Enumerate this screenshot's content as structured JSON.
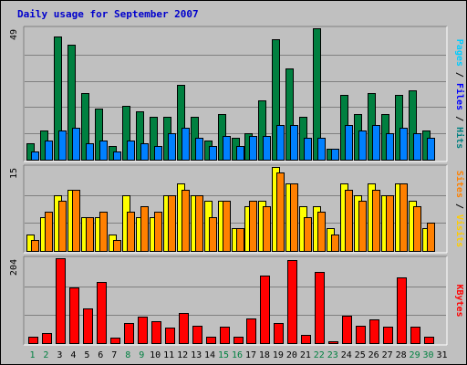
{
  "title": "Daily usage for September 2007",
  "chart_data": {
    "type": "bar",
    "title": "Daily usage for September 2007",
    "categories": [
      "1",
      "2",
      "3",
      "4",
      "5",
      "6",
      "7",
      "8",
      "9",
      "10",
      "11",
      "12",
      "13",
      "14",
      "15",
      "16",
      "17",
      "18",
      "19",
      "20",
      "21",
      "22",
      "23",
      "24",
      "25",
      "26",
      "27",
      "28",
      "29",
      "30",
      "31"
    ],
    "weekend_days": [
      "1",
      "2",
      "8",
      "9",
      "15",
      "16",
      "22",
      "23",
      "29",
      "30"
    ],
    "panels": [
      {
        "id": "hits",
        "ylim": [
          0,
          49
        ],
        "max_label": "49",
        "side_label_parts": [
          {
            "text": "Pages",
            "color": "#00ccff"
          },
          {
            "text": " / ",
            "color": "#000000"
          },
          {
            "text": "Files",
            "color": "#0000ff"
          },
          {
            "text": " / ",
            "color": "#000000"
          },
          {
            "text": "Hits",
            "color": "#008080"
          }
        ],
        "series": [
          {
            "name": "Hits",
            "color": "#008040",
            "values": [
              6,
              11,
              46,
              43,
              25,
              19,
              5,
              20,
              18,
              16,
              16,
              28,
              16,
              7,
              17,
              8,
              10,
              22,
              45,
              34,
              16,
              49,
              4,
              24,
              17,
              25,
              17,
              24,
              26,
              11,
              0
            ]
          },
          {
            "name": "Files",
            "color": "#0080ff",
            "values": [
              3,
              7,
              11,
              12,
              6,
              7,
              3,
              7,
              6,
              5,
              10,
              12,
              8,
              5,
              9,
              5,
              9,
              9,
              13,
              13,
              8,
              8,
              4,
              13,
              11,
              13,
              10,
              12,
              10,
              8,
              0
            ]
          },
          {
            "name": "Pages",
            "color": "#00c0ff",
            "values": [
              0,
              0,
              0,
              0,
              0,
              0,
              0,
              0,
              0,
              0,
              0,
              0,
              0,
              0,
              0,
              0,
              0,
              0,
              0,
              0,
              0,
              0,
              0,
              0,
              0,
              0,
              0,
              0,
              0,
              0,
              0
            ]
          }
        ]
      },
      {
        "id": "visits",
        "ylim": [
          0,
          15
        ],
        "max_label": "15",
        "side_label_parts": [
          {
            "text": "Sites",
            "color": "#ff8000"
          },
          {
            "text": " / ",
            "color": "#000000"
          },
          {
            "text": "Visits",
            "color": "#ffcc00"
          }
        ],
        "series": [
          {
            "name": "Visits",
            "color": "#ffff00",
            "values": [
              3,
              6,
              10,
              11,
              6,
              6,
              3,
              10,
              6,
              6,
              10,
              12,
              10,
              9,
              9,
              4,
              8,
              9,
              15,
              12,
              8,
              8,
              4,
              12,
              10,
              12,
              10,
              12,
              9,
              4,
              0
            ]
          },
          {
            "name": "Sites",
            "color": "#ff8000",
            "values": [
              2,
              7,
              9,
              11,
              6,
              7,
              2,
              7,
              8,
              7,
              10,
              11,
              10,
              6,
              9,
              4,
              9,
              8,
              14,
              12,
              6,
              7,
              3,
              11,
              9,
              11,
              10,
              12,
              8,
              5,
              0
            ]
          }
        ]
      },
      {
        "id": "kbytes",
        "ylim": [
          0,
          204
        ],
        "max_label": "204",
        "side_label_parts": [
          {
            "text": "KBytes",
            "color": "#ff0000"
          }
        ],
        "series": [
          {
            "name": "KBytes",
            "color": "#ff0000",
            "values": [
              15,
              25,
              204,
              133,
              83,
              146,
              13,
              48,
              64,
              53,
              37,
              72,
              42,
              15,
              40,
              16,
              60,
              162,
              48,
              200,
              19,
              170,
              4,
              65,
              41,
              57,
              40,
              157,
              40,
              16,
              0
            ]
          }
        ]
      }
    ]
  }
}
